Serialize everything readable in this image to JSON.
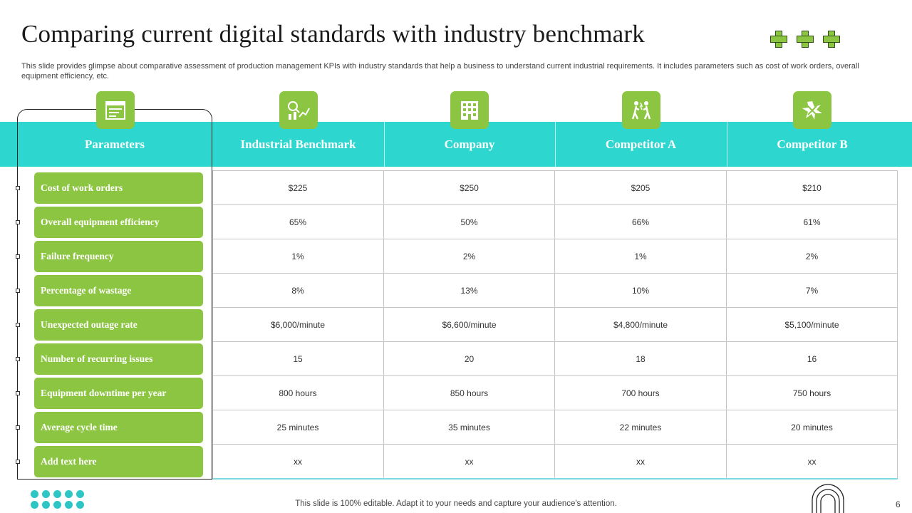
{
  "title": "Comparing current digital standards with industry benchmark",
  "subtitle": "This slide provides glimpse about comparative assessment of production management KPIs with industry standards that help a business to understand current industrial requirements. It includes parameters such as cost of work orders, overall equipment efficiency, etc.",
  "colors": {
    "accent_green": "#8cc541",
    "header_teal": "#2dd6cf",
    "dots_teal": "#2dc6c4"
  },
  "table": {
    "headers": [
      {
        "label": "Parameters",
        "icon": "report-icon"
      },
      {
        "label": "Industrial Benchmark",
        "icon": "analytics-chart-icon"
      },
      {
        "label": "Company",
        "icon": "building-icon"
      },
      {
        "label": "Competitor A",
        "icon": "competition-icon"
      },
      {
        "label": "Competitor B",
        "icon": "clash-icon"
      }
    ],
    "rows": [
      {
        "parameter": "Cost of work orders",
        "values": [
          "$225",
          "$250",
          "$205",
          "$210"
        ]
      },
      {
        "parameter": "Overall equipment efficiency",
        "values": [
          "65%",
          "50%",
          "66%",
          "61%"
        ]
      },
      {
        "parameter": "Failure frequency",
        "values": [
          "1%",
          "2%",
          "1%",
          "2%"
        ]
      },
      {
        "parameter": "Percentage of wastage",
        "values": [
          "8%",
          "13%",
          "10%",
          "7%"
        ]
      },
      {
        "parameter": "Unexpected outage rate",
        "values": [
          "$6,000/minute",
          "$6,600/minute",
          "$4,800/minute",
          "$5,100/minute"
        ]
      },
      {
        "parameter": "Number of recurring issues",
        "values": [
          "15",
          "20",
          "18",
          "16"
        ]
      },
      {
        "parameter": "Equipment downtime per year",
        "values": [
          "800 hours",
          "850 hours",
          "700 hours",
          "750 hours"
        ]
      },
      {
        "parameter": "Average cycle time",
        "values": [
          "25 minutes",
          "35 minutes",
          "22 minutes",
          "20 minutes"
        ]
      },
      {
        "parameter": "Add text here",
        "values": [
          "xx",
          "xx",
          "xx",
          "xx"
        ]
      }
    ]
  },
  "footer": "This slide is 100% editable. Adapt it to your needs and capture your audience's attention.",
  "page_number": "6"
}
